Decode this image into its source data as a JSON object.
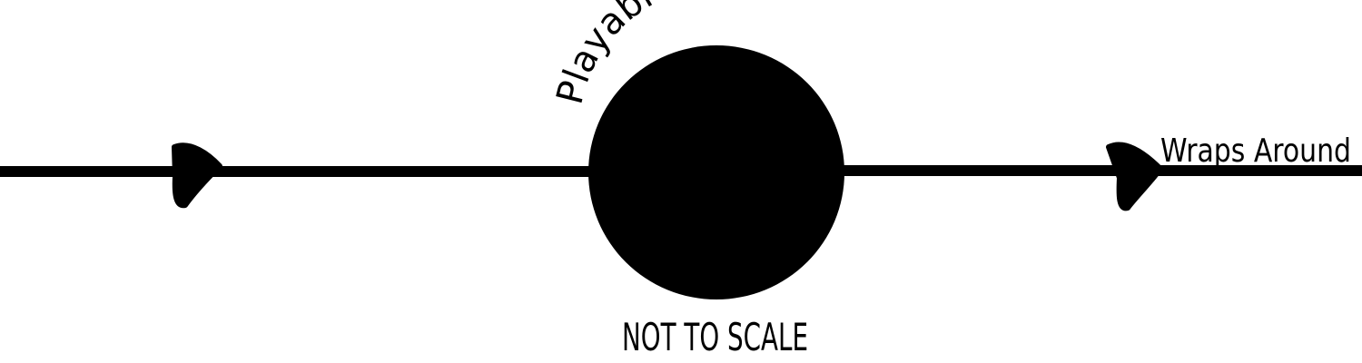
{
  "diagram": {
    "arc_label": "Playable Area",
    "wrap_label": "Wraps Around",
    "scale_note": "NOT TO SCALE"
  },
  "colors": {
    "background": "#ffffff",
    "ink": "#000000"
  },
  "icons": {
    "left_arrow": "arrowhead-right-icon",
    "right_arrow": "arrowhead-right-icon",
    "area": "filled-circle-icon"
  }
}
